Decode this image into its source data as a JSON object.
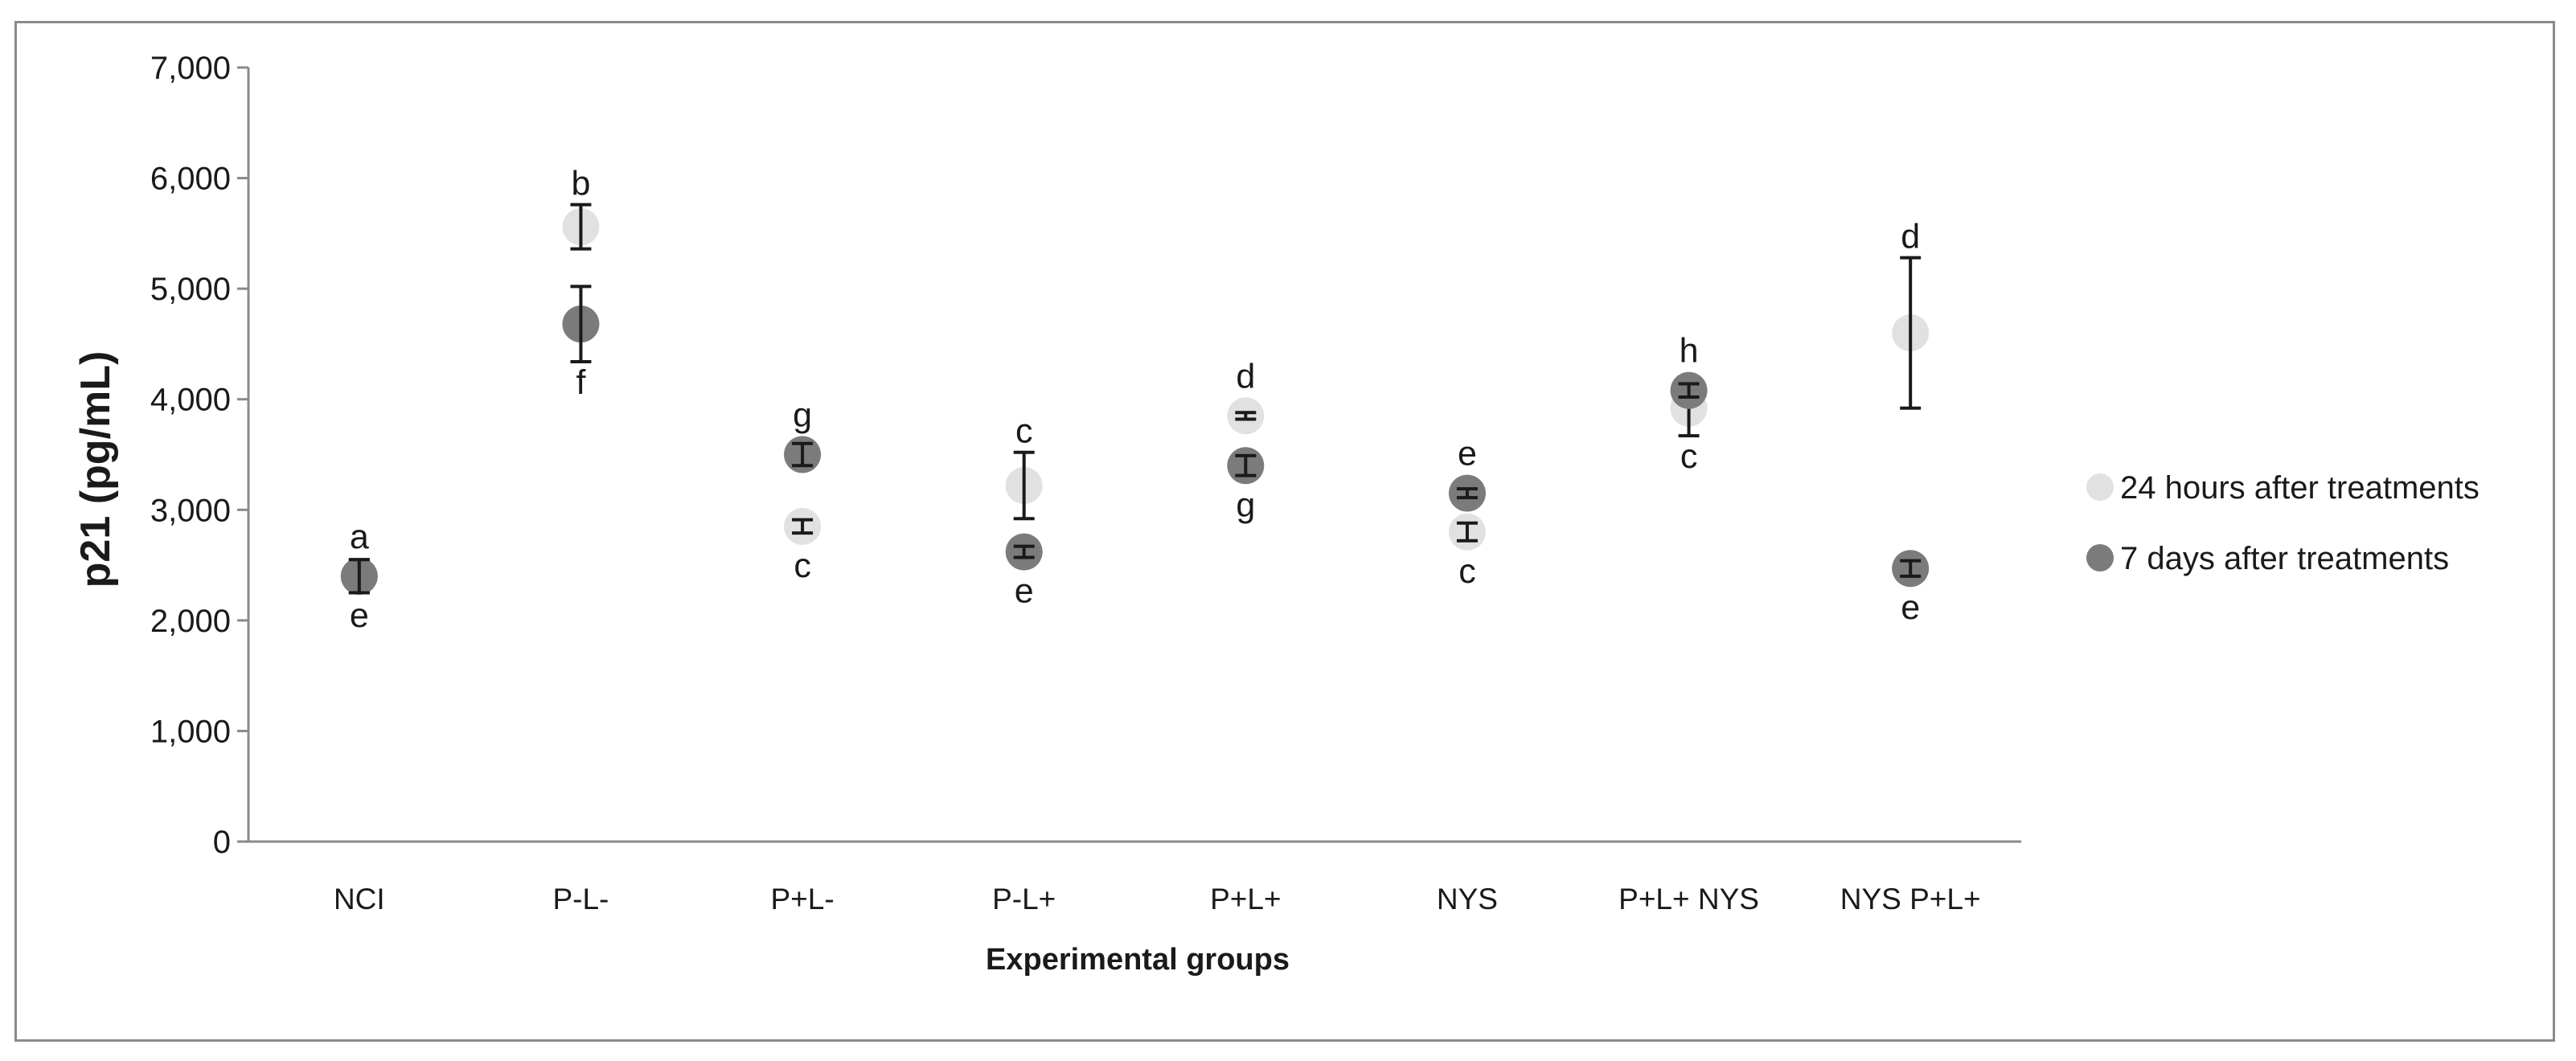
{
  "chart_data": {
    "type": "scatter",
    "xlabel": "Experimental groups",
    "ylabel": "p21 (pg/mL)",
    "categories": [
      "NCI",
      "P-L-",
      "P+L-",
      "P-L+",
      "P+L+",
      "NYS",
      "P+L+ NYS",
      "NYS P+L+"
    ],
    "ylim": [
      0,
      7000
    ],
    "yticks": [
      0,
      1000,
      2000,
      3000,
      4000,
      5000,
      6000,
      7000
    ],
    "ytick_labels": [
      "0",
      "1,000",
      "2,000",
      "3,000",
      "4,000",
      "5,000",
      "6,000",
      "7,000"
    ],
    "grid": false,
    "legend_position": "right",
    "series": [
      {
        "name": "24 hours after treatments",
        "color": "#e1e1e1",
        "values": [
          2400,
          5560,
          2850,
          3220,
          3850,
          2800,
          3920,
          4600
        ],
        "error": [
          150,
          200,
          60,
          300,
          30,
          80,
          250,
          680
        ],
        "letters": [
          "a",
          "b",
          "c",
          "c",
          "d",
          "c",
          "c",
          "d"
        ]
      },
      {
        "name": "7 days after treatments",
        "color": "#7b7b7b",
        "values": [
          2400,
          4680,
          3500,
          2620,
          3400,
          3150,
          4080,
          2470
        ],
        "error": [
          150,
          340,
          100,
          50,
          90,
          40,
          60,
          70
        ],
        "letters": [
          "e",
          "f",
          "g",
          "e",
          "g",
          "e",
          "h",
          "e"
        ]
      }
    ]
  }
}
